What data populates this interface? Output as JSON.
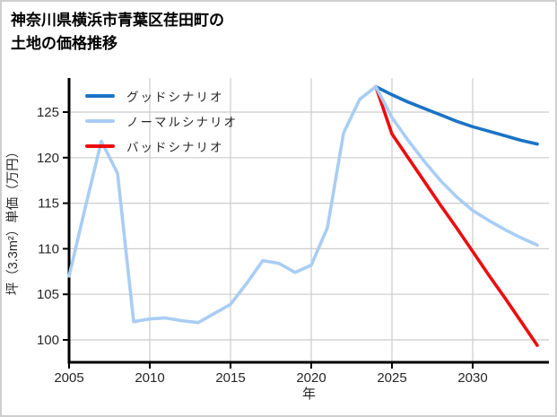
{
  "title": {
    "line1": "神奈川県横浜市青葉区荏田町の",
    "line2": "土地の価格推移"
  },
  "chart_data": {
    "type": "line",
    "title": "神奈川県横浜市青葉区荏田町の土地の価格推移",
    "xlabel": "年",
    "ylabel": "坪（3.3m²）単価（万円）",
    "x_ticks": [
      2005,
      2010,
      2015,
      2020,
      2025,
      2030
    ],
    "y_ticks": [
      100,
      105,
      110,
      115,
      120,
      125
    ],
    "xlim": [
      2005,
      2034.7
    ],
    "ylim": [
      97.5,
      128.8
    ],
    "grid": true,
    "grid_color": "#cccccc",
    "axis_color": "#000000",
    "tick_label_color": "#262626",
    "legend_position": "upper-left",
    "legend": [
      {
        "label": "グッドシナリオ",
        "color": "#1a73c6"
      },
      {
        "label": "ノーマルシナリオ",
        "color": "#a9cdf3"
      },
      {
        "label": "バッドシナリオ",
        "color": "#ec0d0d"
      }
    ],
    "series": [
      {
        "name": "グッドシナリオ",
        "color": "#1a73c6",
        "x": [
          2024,
          2025,
          2026,
          2027,
          2028,
          2029,
          2030,
          2031,
          2032,
          2033,
          2034
        ],
        "values": [
          127.8,
          126.9,
          126.1,
          125.4,
          124.7,
          124.0,
          123.4,
          122.9,
          122.4,
          121.9,
          121.5
        ]
      },
      {
        "name": "ノーマルシナリオ",
        "color": "#a9cdf3",
        "x": [
          2005,
          2006,
          2007,
          2008,
          2009,
          2010,
          2011,
          2012,
          2013,
          2014,
          2015,
          2016,
          2017,
          2018,
          2019,
          2020,
          2021,
          2022,
          2023,
          2024,
          2025,
          2026,
          2027,
          2028,
          2029,
          2030,
          2031,
          2032,
          2033,
          2034
        ],
        "values": [
          107.0,
          114.5,
          121.8,
          118.3,
          102.0,
          102.3,
          102.4,
          102.1,
          101.9,
          102.9,
          103.9,
          106.2,
          108.7,
          108.4,
          107.4,
          108.2,
          112.3,
          122.7,
          126.4,
          127.8,
          124.4,
          121.9,
          119.6,
          117.5,
          115.7,
          114.2,
          113.1,
          112.1,
          111.2,
          110.4
        ]
      },
      {
        "name": "バッドシナリオ",
        "color": "#ec0d0d",
        "x": [
          2024,
          2025,
          2026,
          2027,
          2028,
          2029,
          2030,
          2031,
          2032,
          2033,
          2034
        ],
        "values": [
          127.8,
          122.6,
          120.0,
          117.4,
          114.8,
          112.3,
          109.7,
          107.1,
          104.6,
          102.0,
          99.4
        ]
      }
    ]
  }
}
